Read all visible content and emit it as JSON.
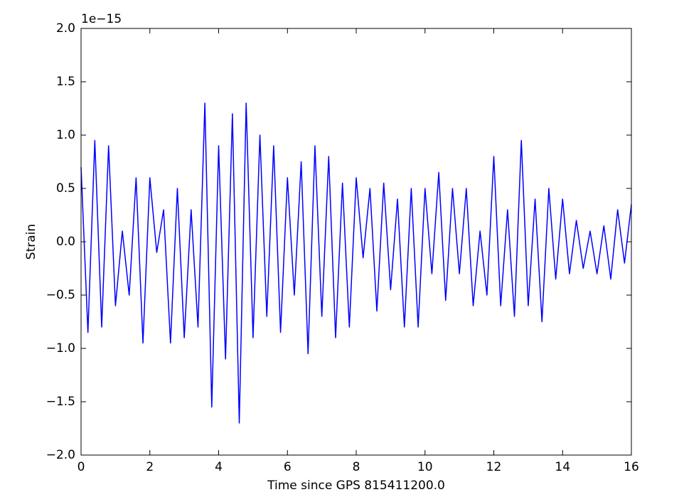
{
  "chart_data": {
    "type": "line",
    "xlabel": "Time since GPS 815411200.0",
    "ylabel": "Strain",
    "offset_text": "1e−15",
    "x": [
      0,
      0.2,
      0.4,
      0.6,
      0.8,
      1.0,
      1.2,
      1.4,
      1.6,
      1.8,
      2.0,
      2.2,
      2.4,
      2.6,
      2.8,
      3.0,
      3.2,
      3.4,
      3.6,
      3.8,
      4.0,
      4.2,
      4.4,
      4.6,
      4.8,
      5.0,
      5.2,
      5.4,
      5.6,
      5.8,
      6.0,
      6.2,
      6.4,
      6.6,
      6.8,
      7.0,
      7.2,
      7.4,
      7.6,
      7.8,
      8.0,
      8.2,
      8.4,
      8.6,
      8.8,
      9.0,
      9.2,
      9.4,
      9.6,
      9.8,
      10.0,
      10.2,
      10.4,
      10.6,
      10.8,
      11.0,
      11.2,
      11.4,
      11.6,
      11.8,
      12.0,
      12.2,
      12.4,
      12.6,
      12.8,
      13.0,
      13.2,
      13.4,
      13.6,
      13.8,
      14.0,
      14.2,
      14.4,
      14.6,
      14.8,
      15.0,
      15.2,
      15.4,
      15.6,
      15.8,
      16.0
    ],
    "series": [
      {
        "name": "Strain",
        "color": "#0000ff",
        "values": [
          0.7,
          -0.85,
          0.95,
          -0.8,
          0.9,
          -0.6,
          0.1,
          -0.5,
          0.6,
          -0.95,
          0.6,
          -0.1,
          0.3,
          -0.95,
          0.5,
          -0.9,
          0.3,
          -0.8,
          1.3,
          -1.55,
          0.9,
          -1.1,
          1.2,
          -1.7,
          1.3,
          -0.9,
          1.0,
          -0.7,
          0.9,
          -0.85,
          0.6,
          -0.5,
          0.75,
          -1.05,
          0.9,
          -0.7,
          0.8,
          -0.9,
          0.55,
          -0.8,
          0.6,
          -0.15,
          0.5,
          -0.65,
          0.55,
          -0.45,
          0.4,
          -0.8,
          0.5,
          -0.8,
          0.5,
          -0.3,
          0.65,
          -0.55,
          0.5,
          -0.3,
          0.5,
          -0.6,
          0.1,
          -0.5,
          0.8,
          -0.6,
          0.3,
          -0.7,
          0.95,
          -0.6,
          0.4,
          -0.75,
          0.5,
          -0.35,
          0.4,
          -0.3,
          0.2,
          -0.25,
          0.1,
          -0.3,
          0.15,
          -0.35,
          0.3,
          -0.2,
          0.35
        ]
      }
    ],
    "xlim": [
      0,
      16
    ],
    "xticks": [
      0,
      2,
      4,
      6,
      8,
      10,
      12,
      14,
      16
    ],
    "ylim": [
      -2,
      2
    ],
    "yticks": [
      {
        "value": -2,
        "label": "−2.0"
      },
      {
        "value": -1.5,
        "label": "−1.5"
      },
      {
        "value": -1,
        "label": "−1.0"
      },
      {
        "value": -0.5,
        "label": "−0.5"
      },
      {
        "value": 0,
        "label": "0.0"
      },
      {
        "value": 0.5,
        "label": "0.5"
      },
      {
        "value": 1,
        "label": "1.0"
      },
      {
        "value": 1.5,
        "label": "1.5"
      },
      {
        "value": 2,
        "label": "2.0"
      }
    ],
    "grid": false
  }
}
